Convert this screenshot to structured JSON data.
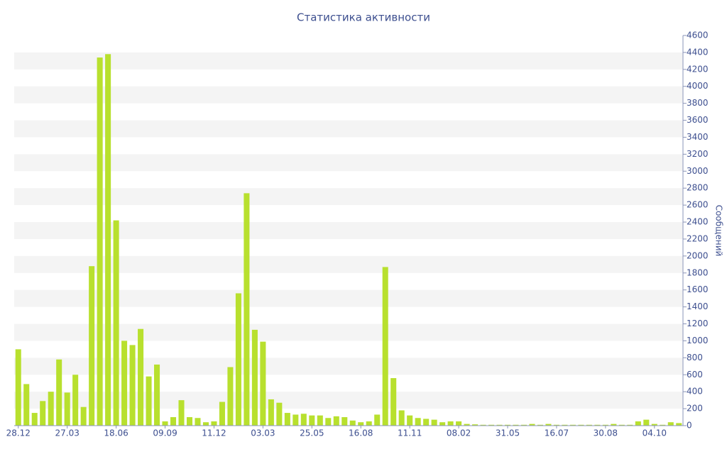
{
  "chart_data": {
    "type": "bar",
    "title": "Статистика активности",
    "y_label": "Сообщений",
    "categories": [
      "28.12",
      null,
      null,
      null,
      null,
      null,
      "27.03",
      null,
      null,
      null,
      null,
      null,
      "18.06",
      null,
      null,
      null,
      null,
      null,
      "09.09",
      null,
      null,
      null,
      null,
      null,
      "11.12",
      null,
      null,
      null,
      null,
      null,
      "03.03",
      null,
      null,
      null,
      null,
      null,
      "25.05",
      null,
      null,
      null,
      null,
      null,
      "16.08",
      null,
      null,
      null,
      null,
      null,
      "11.11",
      null,
      null,
      null,
      null,
      null,
      "08.02",
      null,
      null,
      null,
      null,
      null,
      "31.05",
      null,
      null,
      null,
      null,
      null,
      "16.07",
      null,
      null,
      null,
      null,
      null,
      "30.08",
      null,
      null,
      null,
      null,
      null,
      "04.10",
      null,
      null,
      null
    ],
    "values": [
      900,
      490,
      150,
      290,
      400,
      780,
      390,
      600,
      220,
      1880,
      4340,
      4380,
      2420,
      1000,
      950,
      1140,
      580,
      720,
      50,
      100,
      300,
      100,
      90,
      40,
      50,
      280,
      690,
      1560,
      2740,
      1130,
      990,
      310,
      270,
      150,
      130,
      140,
      120,
      120,
      90,
      110,
      100,
      60,
      40,
      50,
      130,
      1870,
      560,
      180,
      120,
      90,
      80,
      70,
      40,
      50,
      50,
      20,
      15,
      10,
      10,
      10,
      10,
      10,
      10,
      20,
      10,
      20,
      10,
      10,
      10,
      10,
      10,
      10,
      10,
      20,
      10,
      10,
      50,
      70,
      20,
      10,
      40,
      30
    ],
    "color": "#b8e02e",
    "ylim": [
      0,
      4600
    ],
    "yticks": [
      0,
      200,
      400,
      600,
      800,
      1000,
      1200,
      1400,
      1600,
      1800,
      2000,
      2200,
      2400,
      2600,
      2800,
      3000,
      3200,
      3400,
      3600,
      3800,
      4000,
      4200,
      4400,
      4600
    ],
    "y_axis_side": "right",
    "grid": "bands"
  }
}
